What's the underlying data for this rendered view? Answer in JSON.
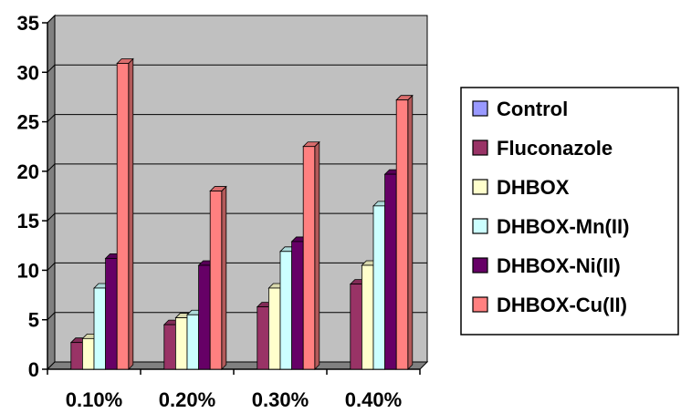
{
  "chart_data": {
    "type": "bar",
    "style": "3d-clustered-column",
    "categories": [
      "0.10%",
      "0.20%",
      "0.30%",
      "0.40%"
    ],
    "ylim": [
      0,
      35
    ],
    "yticks": [
      0,
      5,
      10,
      15,
      20,
      25,
      30,
      35
    ],
    "grid": true,
    "legend_position": "right",
    "series": [
      {
        "name": "Control",
        "color": "#9999ff",
        "values": [
          0,
          0,
          0,
          0
        ]
      },
      {
        "name": "Fluconazole",
        "color": "#993366",
        "values": [
          2.7,
          4.5,
          6.3,
          8.6
        ]
      },
      {
        "name": "DHBOX",
        "color": "#ffffcc",
        "values": [
          3.1,
          5.2,
          8.2,
          10.5
        ]
      },
      {
        "name": "DHBOX-Mn(II)",
        "color": "#ccffff",
        "values": [
          8.2,
          5.5,
          11.9,
          16.5
        ]
      },
      {
        "name": "DHBOX-Ni(II)",
        "color": "#660066",
        "values": [
          11.2,
          10.5,
          12.9,
          19.7
        ]
      },
      {
        "name": "DHBOX-Cu(II)",
        "color": "#ff8080",
        "values": [
          30.9,
          18.0,
          22.5,
          27.2
        ]
      }
    ],
    "plot_background": "#c0c0c0"
  }
}
